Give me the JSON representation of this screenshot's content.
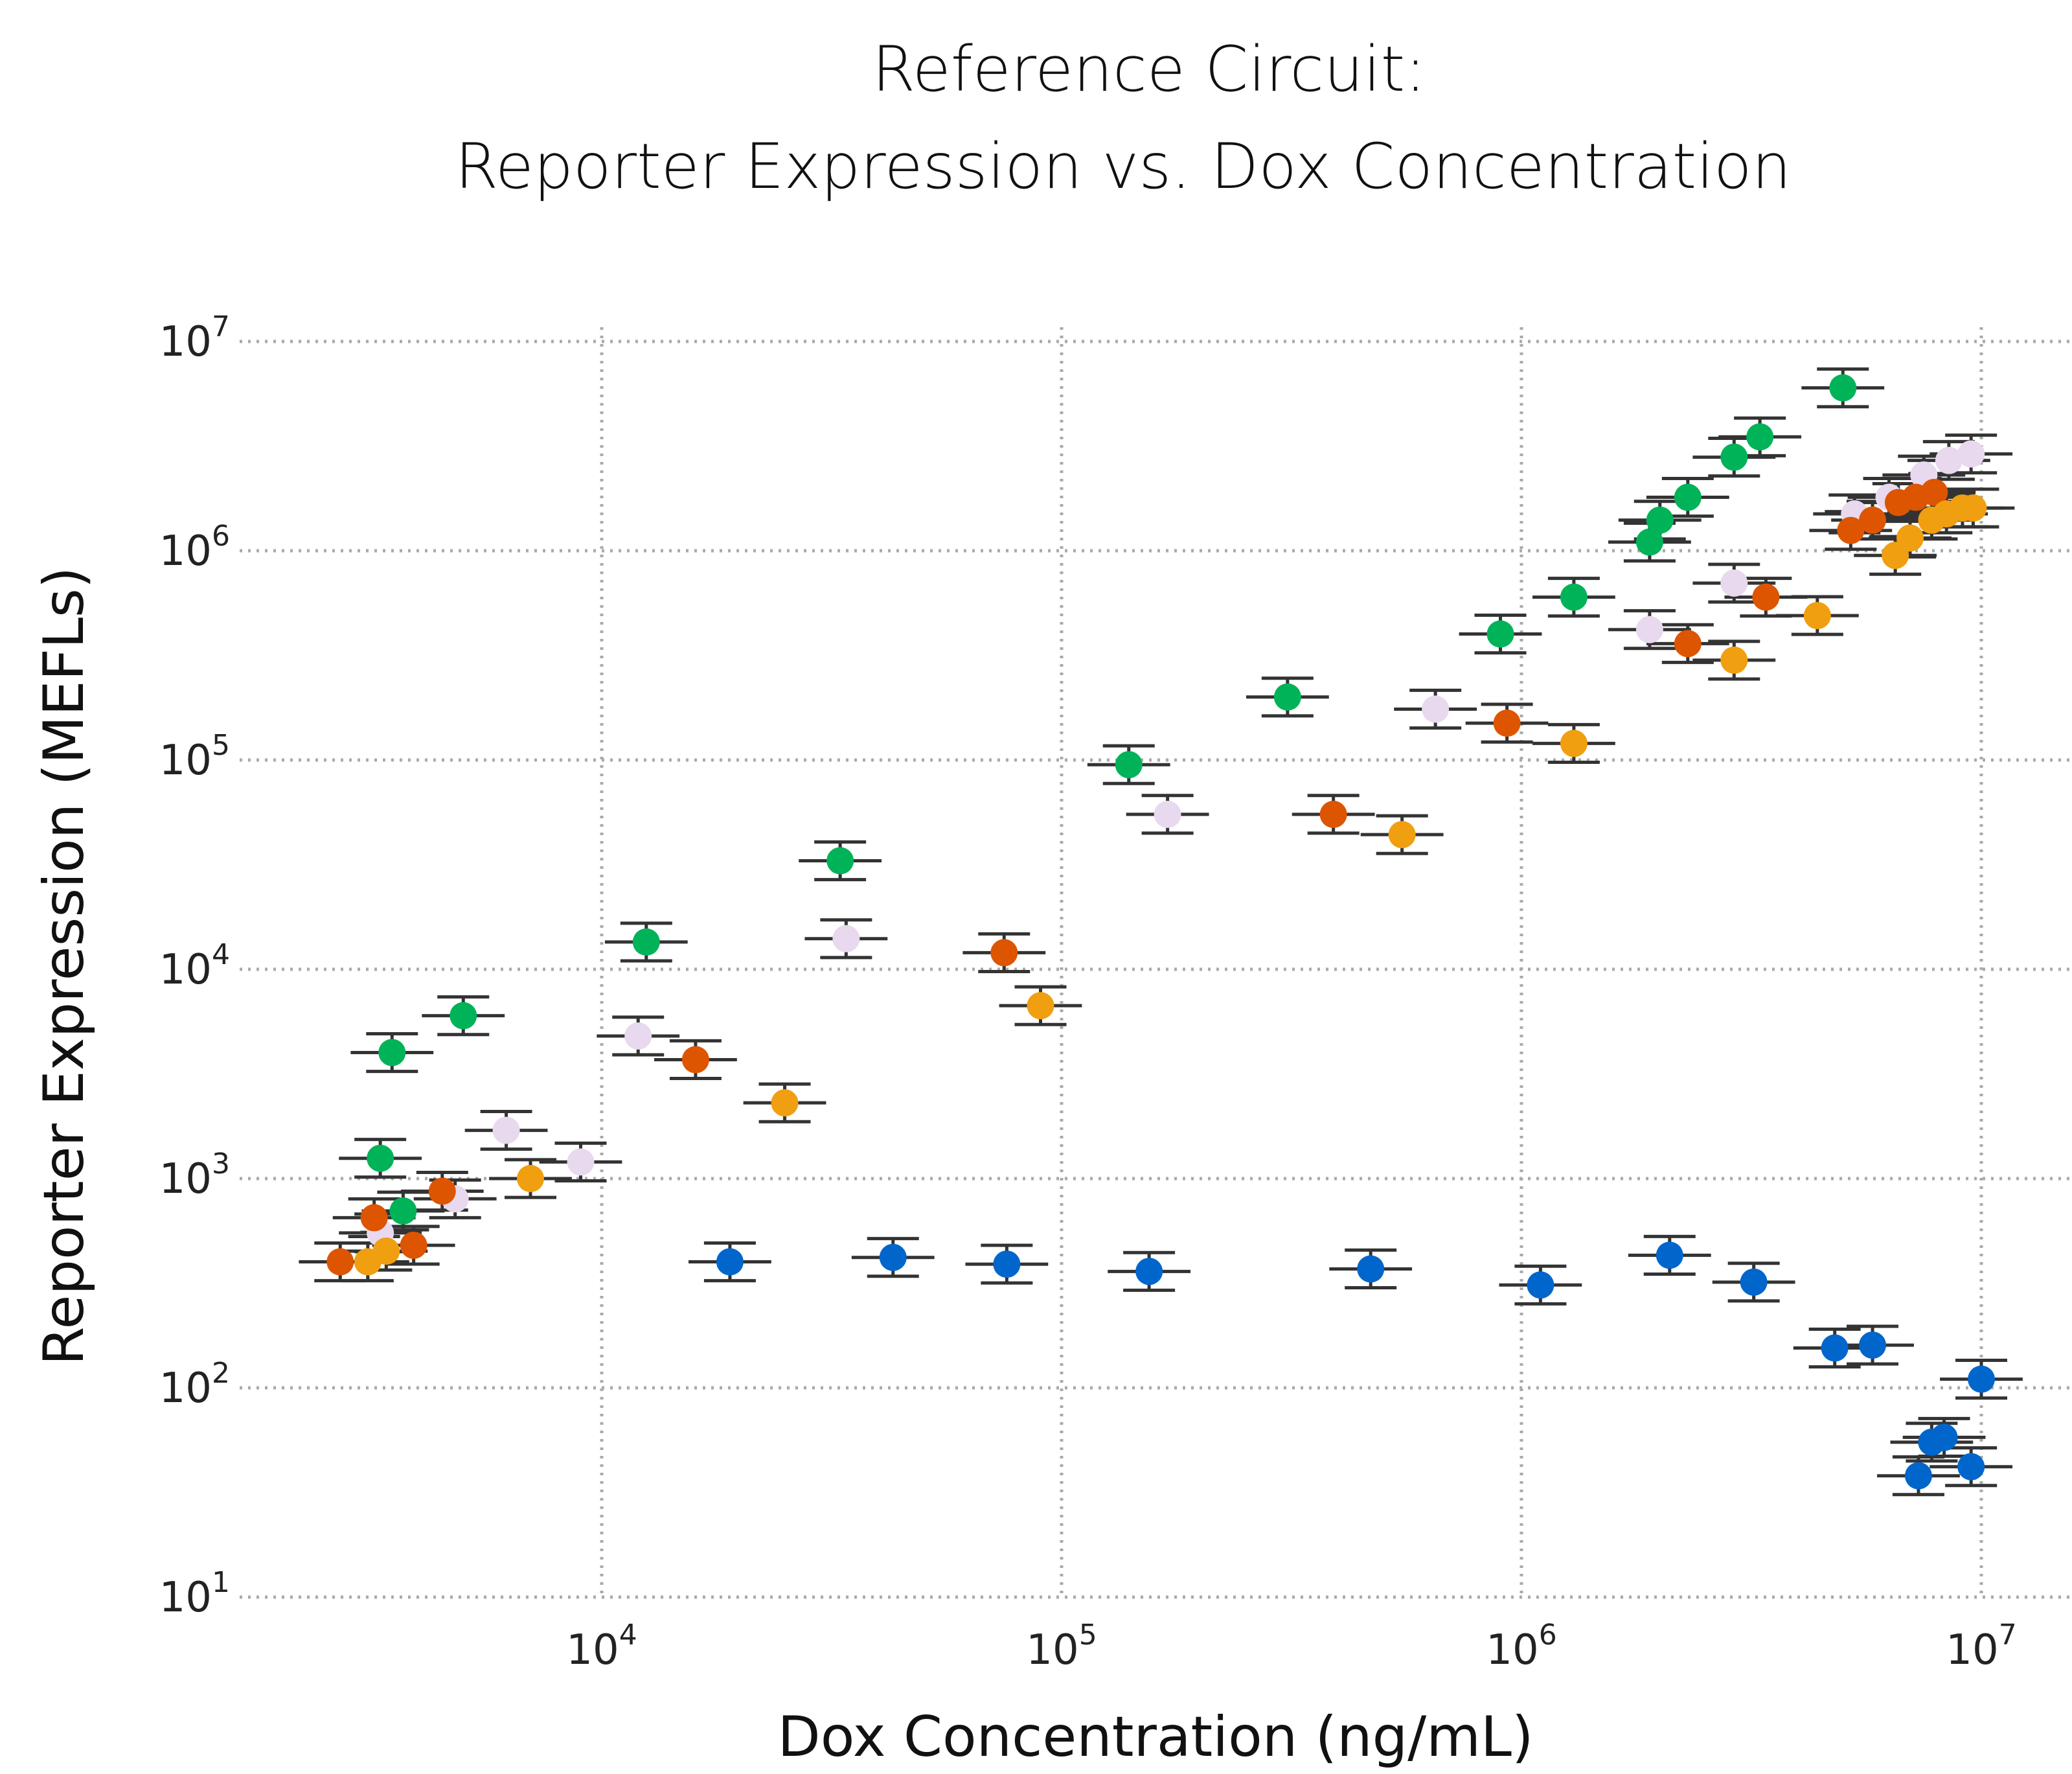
{
  "chart_data": {
    "type": "scatter",
    "title": [
      "Reference Circuit:",
      "Reporter Expression vs. Dox Concentration"
    ],
    "xlabel": "Dox Concentration (ng/mL)",
    "ylabel": "Reporter Expression (MEFLs)",
    "xscale": "log",
    "yscale": "log",
    "xlim": [
      1600,
      15000000
    ],
    "ylim": [
      10,
      10000000
    ],
    "xticks": [
      {
        "base": "10",
        "exp": "4",
        "value": 10000
      },
      {
        "base": "10",
        "exp": "5",
        "value": 100000
      },
      {
        "base": "10",
        "exp": "6",
        "value": 1000000
      },
      {
        "base": "10",
        "exp": "7",
        "value": 10000000
      }
    ],
    "yticks": [
      {
        "base": "10",
        "exp": "1",
        "value": 10
      },
      {
        "base": "10",
        "exp": "2",
        "value": 100
      },
      {
        "base": "10",
        "exp": "3",
        "value": 1000
      },
      {
        "base": "10",
        "exp": "4",
        "value": 10000
      },
      {
        "base": "10",
        "exp": "5",
        "value": 100000
      },
      {
        "base": "10",
        "exp": "6",
        "value": 1000000
      },
      {
        "base": "10",
        "exp": "7",
        "value": 10000000
      }
    ],
    "grid": true,
    "error_bars": true,
    "series": [
      {
        "color": "#00b359",
        "points": [
          [
            3500,
            4000
          ],
          [
            3300,
            1250
          ],
          [
            3700,
            700
          ],
          [
            5000,
            6000
          ],
          [
            12500,
            13500
          ],
          [
            33000,
            33000
          ],
          [
            140000,
            95000
          ],
          [
            310000,
            200000
          ],
          [
            900000,
            400000
          ],
          [
            1300000,
            600000
          ],
          [
            1900000,
            1100000
          ],
          [
            2000000,
            1400000
          ],
          [
            2300000,
            1800000
          ],
          [
            2900000,
            2800000
          ],
          [
            3300000,
            3500000
          ],
          [
            5000000,
            6000000
          ]
        ]
      },
      {
        "color": "#e8d9ef",
        "points": [
          [
            3300,
            550
          ],
          [
            4800,
            800
          ],
          [
            6200,
            1700
          ],
          [
            9000,
            1200
          ],
          [
            12000,
            4800
          ],
          [
            34000,
            14000
          ],
          [
            170000,
            55000
          ],
          [
            650000,
            175000
          ],
          [
            1900000,
            420000
          ],
          [
            2900000,
            700000
          ],
          [
            5300000,
            1500000
          ],
          [
            6300000,
            1800000
          ],
          [
            7500000,
            2300000
          ],
          [
            8500000,
            2700000
          ],
          [
            9500000,
            2900000
          ]
        ]
      },
      {
        "color": "#dd5500",
        "points": [
          [
            2700,
            400
          ],
          [
            3200,
            650
          ],
          [
            3900,
            480
          ],
          [
            4500,
            870
          ],
          [
            16000,
            3700
          ],
          [
            75000,
            12000
          ],
          [
            390000,
            55000
          ],
          [
            930000,
            150000
          ],
          [
            2300000,
            360000
          ],
          [
            3400000,
            600000
          ],
          [
            5200000,
            1250000
          ],
          [
            5800000,
            1400000
          ],
          [
            6600000,
            1700000
          ],
          [
            7200000,
            1800000
          ],
          [
            7900000,
            1900000
          ]
        ]
      },
      {
        "color": "#f09f10",
        "points": [
          [
            3100,
            400
          ],
          [
            3400,
            450
          ],
          [
            7000,
            1000
          ],
          [
            25000,
            2300
          ],
          [
            90000,
            6700
          ],
          [
            550000,
            44000
          ],
          [
            1300000,
            120000
          ],
          [
            2900000,
            300000
          ],
          [
            4400000,
            490000
          ],
          [
            6500000,
            950000
          ],
          [
            7000000,
            1150000
          ],
          [
            7800000,
            1400000
          ],
          [
            8400000,
            1500000
          ],
          [
            9100000,
            1600000
          ],
          [
            9600000,
            1600000
          ]
        ]
      },
      {
        "color": "#0066cc",
        "points": [
          [
            19000,
            400
          ],
          [
            43000,
            420
          ],
          [
            76000,
            390
          ],
          [
            155000,
            360
          ],
          [
            470000,
            370
          ],
          [
            1100000,
            310
          ],
          [
            2100000,
            430
          ],
          [
            3200000,
            320
          ],
          [
            4800000,
            155
          ],
          [
            5800000,
            160
          ],
          [
            7300000,
            38
          ],
          [
            7800000,
            55
          ],
          [
            8300000,
            58
          ],
          [
            9500000,
            42
          ],
          [
            10000000,
            110
          ]
        ]
      }
    ]
  }
}
